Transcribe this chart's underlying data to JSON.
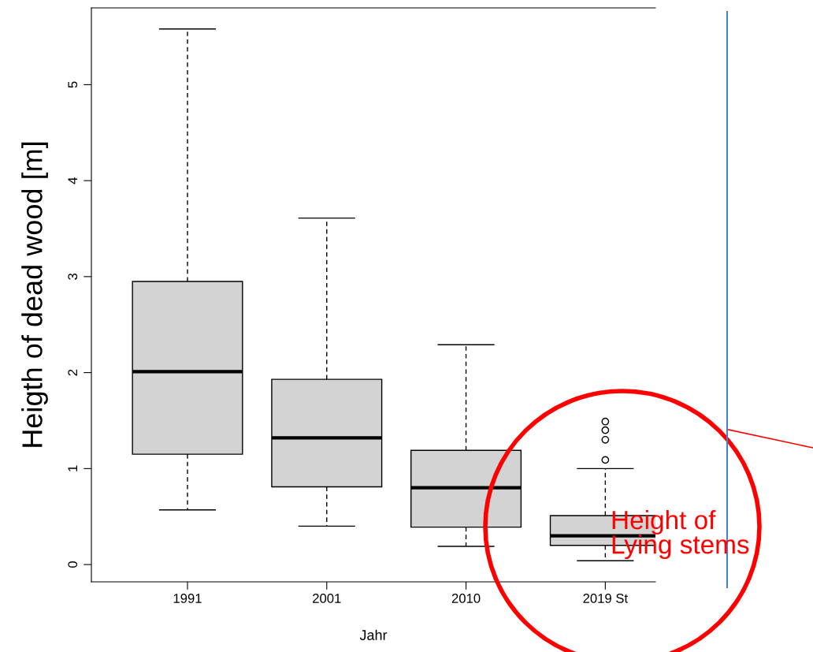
{
  "chart_data": {
    "type": "box",
    "xlabel": "Jahr",
    "ylabel": "Heigth of dead wood [m]",
    "categories": [
      "1991",
      "2001",
      "2010",
      "2019 St"
    ],
    "color": "#d3d3d3",
    "boxes": [
      {
        "low": 0.57,
        "q1": 1.15,
        "median": 2.01,
        "q3": 2.95,
        "high": 5.58
      },
      {
        "low": 0.4,
        "q1": 0.81,
        "median": 1.32,
        "q3": 1.93,
        "high": 3.61
      },
      {
        "low": 0.19,
        "q1": 0.39,
        "median": 0.8,
        "q3": 1.19,
        "high": 2.29
      },
      {
        "low": 0.04,
        "q1": 0.2,
        "median": 0.3,
        "q3": 0.51,
        "high": 1.0,
        "outliers": [
          1.09,
          1.3,
          1.4,
          1.49
        ]
      }
    ],
    "ylim": [
      -0.18,
      5.8
    ],
    "yticks": [
      0,
      1,
      2,
      3,
      4,
      5
    ],
    "grid": false,
    "annotations": [
      "Height of\nLying stems"
    ]
  }
}
